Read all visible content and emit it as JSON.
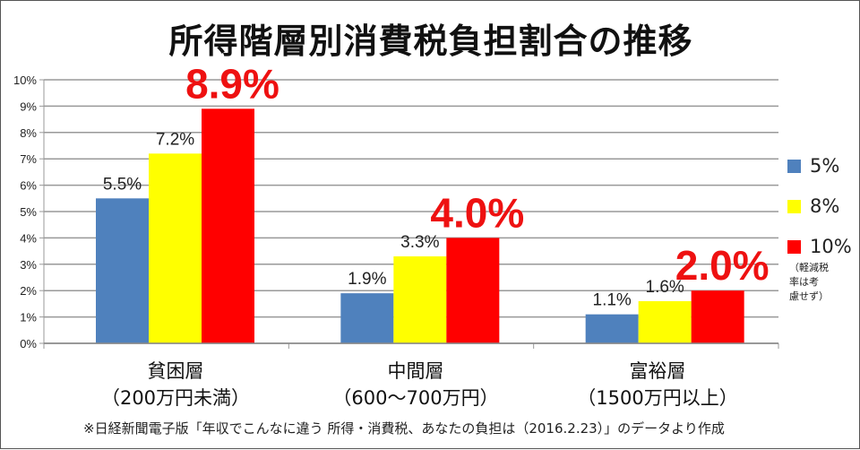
{
  "chart_data": {
    "type": "bar",
    "title": "所得階層別消費税負担割合の推移",
    "categories": [
      {
        "name": "貧困層",
        "sub": "（200万円未満）"
      },
      {
        "name": "中間層",
        "sub": "（600〜700万円）"
      },
      {
        "name": "富裕層",
        "sub": "（1500万円以上）"
      }
    ],
    "series": [
      {
        "name": "5%",
        "color": "#4f81bd",
        "values": [
          5.5,
          1.9,
          1.1
        ],
        "labels": [
          "5.5%",
          "1.9%",
          "1.1%"
        ]
      },
      {
        "name": "8%",
        "color": "#ffff00",
        "values": [
          7.2,
          3.3,
          1.6
        ],
        "labels": [
          "7.2%",
          "3.3%",
          "1.6%"
        ]
      },
      {
        "name": "10%",
        "color": "#ff0000",
        "values": [
          8.9,
          4.0,
          2.0
        ],
        "labels": [
          "8.9%",
          "4.0%",
          "2.0%"
        ]
      }
    ],
    "ylim": [
      0,
      10
    ],
    "yticks": [
      "0%",
      "1%",
      "2%",
      "3%",
      "4%",
      "5%",
      "6%",
      "7%",
      "8%",
      "9%",
      "10%"
    ],
    "grid": true,
    "legend_position": "right",
    "legend_note": [
      "（軽減税",
      "率は考",
      "慮せず）"
    ]
  },
  "source_note": "※日経新聞電子版「年収でこんなに違う 所得・消費税、あなたの負担は（2016.2.23）」のデータより作成"
}
